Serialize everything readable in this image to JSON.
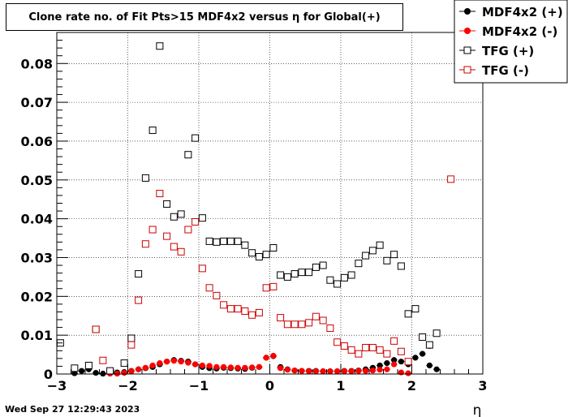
{
  "chart_data": {
    "type": "scatter",
    "title": "Clone rate no. of Fit Pts>15 MDF4x2 versus η for Global(+)",
    "xlabel": "η",
    "ylabel": "",
    "xlim": [
      -3,
      3
    ],
    "ylim": [
      0,
      0.088
    ],
    "x_ticks": [
      "−3",
      "−2",
      "−1",
      "0",
      "1",
      "2",
      "3"
    ],
    "y_ticks": [
      "0",
      "0.01",
      "0.02",
      "0.03",
      "0.04",
      "0.05",
      "0.06",
      "0.07",
      "0.08"
    ],
    "grid": true,
    "legend_position": "top-right",
    "series": [
      {
        "name": "MDF4x2 (+)",
        "color": "#000000",
        "marker": "filled-circle",
        "x": [
          -3.15,
          -2.75,
          -2.65,
          -2.55,
          -2.45,
          -2.35,
          -2.25,
          -2.15,
          -2.05,
          -1.95,
          -1.85,
          -1.75,
          -1.65,
          -1.55,
          -1.45,
          -1.35,
          -1.25,
          -1.15,
          -1.05,
          -0.95,
          -0.85,
          -0.75,
          -0.65,
          -0.55,
          -0.45,
          -0.35,
          -0.25,
          -0.15,
          -0.05,
          0.05,
          0.15,
          0.25,
          0.35,
          0.45,
          0.55,
          0.65,
          0.75,
          0.85,
          0.95,
          1.05,
          1.15,
          1.25,
          1.35,
          1.45,
          1.55,
          1.65,
          1.75,
          1.85,
          1.95,
          2.05,
          2.15,
          2.25,
          2.35
        ],
        "y": [
          0.0004,
          0.0002,
          0.0008,
          0.0012,
          0.0003,
          0.0001,
          0.0004,
          0.0004,
          0.0005,
          0.0008,
          0.0012,
          0.0015,
          0.0018,
          0.0025,
          0.0032,
          0.0036,
          0.0034,
          0.0032,
          0.0025,
          0.0018,
          0.0015,
          0.0014,
          0.0016,
          0.0015,
          0.0014,
          0.0013,
          0.0016,
          0.0018,
          0.0042,
          0.0046,
          0.0018,
          0.0012,
          0.0009,
          0.0008,
          0.0008,
          0.0008,
          0.0007,
          0.0007,
          0.0007,
          0.0008,
          0.0008,
          0.0009,
          0.0012,
          0.0016,
          0.0022,
          0.0028,
          0.0036,
          0.0032,
          0.0025,
          0.0042,
          0.0052,
          0.0022,
          0.0012
        ]
      },
      {
        "name": "MDF4x2 (-)",
        "color": "#ff0000",
        "marker": "filled-circle",
        "x": [
          -2.25,
          -2.15,
          -2.05,
          -1.95,
          -1.85,
          -1.75,
          -1.65,
          -1.55,
          -1.45,
          -1.35,
          -1.25,
          -1.15,
          -1.05,
          -0.95,
          -0.85,
          -0.75,
          -0.65,
          -0.55,
          -0.45,
          -0.35,
          -0.25,
          -0.15,
          -0.05,
          0.05,
          0.15,
          0.25,
          0.35,
          0.45,
          0.55,
          0.65,
          0.75,
          0.85,
          0.95,
          1.05,
          1.15,
          1.25,
          1.35,
          1.45,
          1.55,
          1.65,
          1.75,
          1.85,
          1.95,
          2.25
        ],
        "y": [
          0.0001,
          0.0001,
          0.0003,
          0.0007,
          0.0012,
          0.0016,
          0.0022,
          0.0028,
          0.0032,
          0.0034,
          0.0032,
          0.0029,
          0.0025,
          0.0022,
          0.0021,
          0.0018,
          0.0018,
          0.0017,
          0.0016,
          0.0016,
          0.0017,
          0.0018,
          0.0042,
          0.0047,
          0.0015,
          0.0011,
          0.0009,
          0.0008,
          0.0007,
          0.0007,
          0.0007,
          0.0007,
          0.0007,
          0.0007,
          0.0007,
          0.0008,
          0.0008,
          0.0009,
          0.0011,
          0.0012,
          0.0025,
          0.0004,
          0.0002,
          0.0072
        ]
      },
      {
        "name": "TFG (+)",
        "color": "#000000",
        "marker": "open-square",
        "x": [
          -2.95,
          -2.75,
          -2.55,
          -2.45,
          -2.25,
          -2.05,
          -1.95,
          -1.85,
          -1.75,
          -1.65,
          -1.55,
          -1.45,
          -1.35,
          -1.25,
          -1.15,
          -1.05,
          -0.95,
          -0.85,
          -0.75,
          -0.65,
          -0.55,
          -0.45,
          -0.35,
          -0.25,
          -0.15,
          -0.05,
          0.05,
          0.15,
          0.25,
          0.35,
          0.45,
          0.55,
          0.65,
          0.75,
          0.85,
          0.95,
          1.05,
          1.15,
          1.25,
          1.35,
          1.45,
          1.55,
          1.65,
          1.75,
          1.85,
          1.95,
          2.05,
          2.15,
          2.25,
          2.35
        ],
        "y": [
          0.008,
          0.0015,
          0.0022,
          0.0115,
          0.0008,
          0.0028,
          0.0092,
          0.0258,
          0.0505,
          0.0628,
          0.0845,
          0.0438,
          0.0405,
          0.0412,
          0.0565,
          0.0608,
          0.0402,
          0.0342,
          0.034,
          0.0342,
          0.0342,
          0.0342,
          0.0332,
          0.0312,
          0.0302,
          0.0308,
          0.0325,
          0.0255,
          0.025,
          0.0258,
          0.0262,
          0.0262,
          0.0275,
          0.028,
          0.0242,
          0.0232,
          0.0248,
          0.0255,
          0.0285,
          0.0305,
          0.0318,
          0.0332,
          0.0292,
          0.0308,
          0.0278,
          0.0155,
          0.0168,
          0.0095,
          0.0075,
          0.0105
        ]
      },
      {
        "name": "TFG (-)",
        "color": "#cc0000",
        "marker": "open-square",
        "x": [
          -2.45,
          -2.35,
          -1.95,
          -1.85,
          -1.75,
          -1.65,
          -1.55,
          -1.45,
          -1.35,
          -1.25,
          -1.15,
          -1.05,
          -0.95,
          -0.85,
          -0.75,
          -0.65,
          -0.55,
          -0.45,
          -0.35,
          -0.25,
          -0.15,
          -0.05,
          0.05,
          0.15,
          0.25,
          0.35,
          0.45,
          0.55,
          0.65,
          0.75,
          0.85,
          0.95,
          1.05,
          1.15,
          1.25,
          1.35,
          1.45,
          1.55,
          1.65,
          1.75,
          1.85,
          1.95,
          2.55
        ],
        "y": [
          0.0115,
          0.0035,
          0.0075,
          0.019,
          0.0335,
          0.0372,
          0.0465,
          0.0355,
          0.0328,
          0.0315,
          0.0372,
          0.0392,
          0.0272,
          0.0222,
          0.0202,
          0.0178,
          0.0168,
          0.0168,
          0.0162,
          0.0152,
          0.0158,
          0.0222,
          0.0225,
          0.0145,
          0.0128,
          0.0128,
          0.0128,
          0.0132,
          0.0148,
          0.0138,
          0.0118,
          0.0082,
          0.0072,
          0.0062,
          0.0052,
          0.0068,
          0.0068,
          0.0062,
          0.0052,
          0.0085,
          0.0058,
          0.0032,
          0.0502
        ]
      }
    ]
  },
  "timestamp": "Wed Sep 27 12:29:43 2023"
}
